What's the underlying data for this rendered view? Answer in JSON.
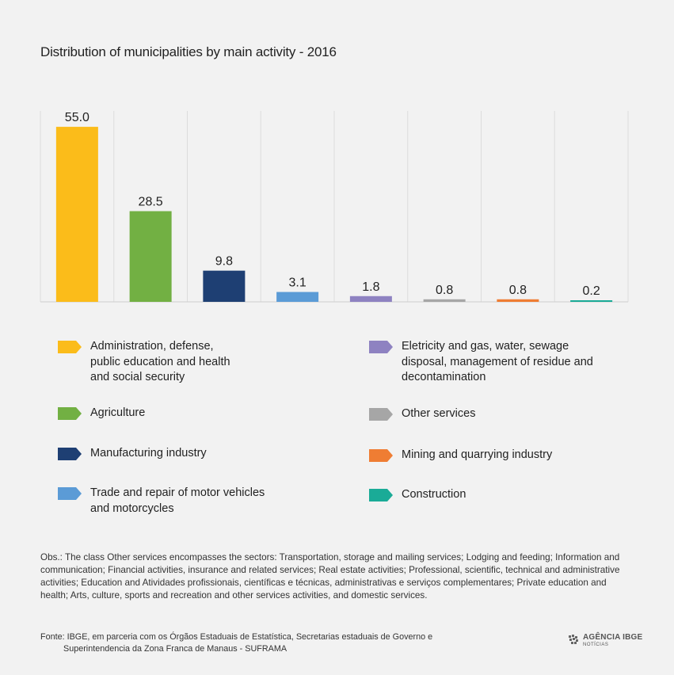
{
  "chart_data": {
    "type": "bar",
    "title": "Distribution of municipalities by main activity - 2016",
    "categories": [
      "Administration, defense, public education and health and social security",
      "Agriculture",
      "Manufacturing industry",
      "Trade and repair of motor vehicles and motorcycles",
      "Eletricity and gas, water, sewage disposal, management of residue and decontamination",
      "Other services",
      "Mining and quarrying industry",
      "Construction"
    ],
    "values": [
      55.0,
      28.5,
      9.8,
      3.1,
      1.8,
      0.8,
      0.8,
      0.2
    ],
    "value_labels": [
      "55.0",
      "28.5",
      "9.8",
      "3.1",
      "1.8",
      "0.8",
      "0.8",
      "0.2"
    ],
    "colors": [
      "#fbbc1a",
      "#72b043",
      "#1e3f73",
      "#5b9bd6",
      "#8e82c1",
      "#a6a6a6",
      "#ef7d33",
      "#1aab97"
    ],
    "xlabel": "",
    "ylabel": "",
    "ylim": [
      0,
      60
    ],
    "grid": "vertical",
    "legend": "bottom"
  },
  "legend_columns": {
    "left": [
      {
        "lines": [
          "Administration, defense,",
          "public education and health",
          "and social security"
        ],
        "color": "#fbbc1a"
      },
      {
        "lines": [
          "Agriculture"
        ],
        "color": "#72b043"
      },
      {
        "lines": [
          "Manufacturing industry"
        ],
        "color": "#1e3f73"
      },
      {
        "lines": [
          "Trade and repair of motor vehicles",
          "and motorcycles"
        ],
        "color": "#5b9bd6"
      }
    ],
    "right": [
      {
        "lines": [
          "Eletricity and gas, water, sewage",
          "disposal, management of residue and",
          "decontamination"
        ],
        "color": "#8e82c1"
      },
      {
        "lines": [
          "Other services"
        ],
        "color": "#a6a6a6"
      },
      {
        "lines": [
          "Mining and quarrying industry"
        ],
        "color": "#ef7d33"
      },
      {
        "lines": [
          "Construction"
        ],
        "color": "#1aab97"
      }
    ]
  },
  "notes": {
    "obs": "Obs.: The class Other services encompasses the sectors: Transportation, storage and mailing services; Lodging and feeding;  Information and communication; Financial activities, insurance and related services;  Real estate activities; Professional, scientific, technical and administrative activities; Education and Atividades profissionais, científicas e técnicas, administrativas e serviços complementares; Private education and health;  Arts, culture, sports and recreation and other services activities, and domestic services.",
    "source_line1": "Fonte:  IBGE, em parceria com os Órgãos Estaduais de Estatística, Secretarias estaduais de Governo e",
    "source_line2": "Superintendencia da Zona Franca de Manaus - SUFRAMA"
  },
  "logo": {
    "main": "AGÊNCIA IBGE",
    "sub": "NOTÍCIAS"
  }
}
